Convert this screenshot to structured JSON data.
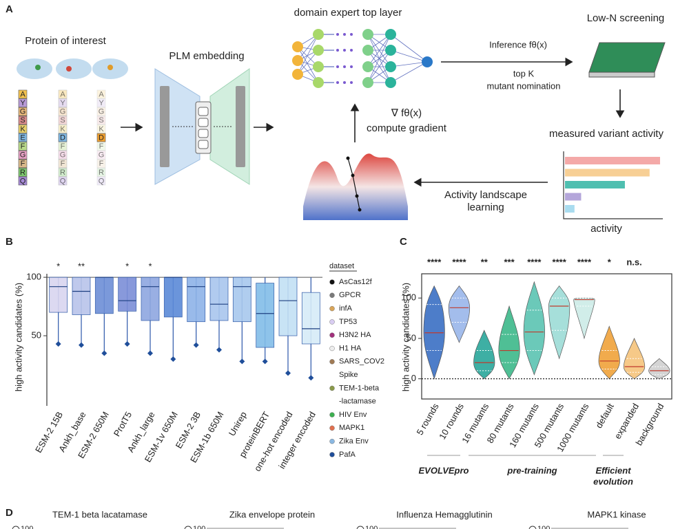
{
  "panel_a": {
    "label": "A",
    "protein_title": "Protein of interest",
    "sequences": [
      "AYGSKEFGFRQ",
      "AYGSKDFGFRQ",
      "AYGSKDFGFRQ"
    ],
    "plm_title": "PLM embedding",
    "network_title": "domain expert top layer",
    "inference": "Inference fθ(x)",
    "nomination": [
      "top K",
      "mutant nomination"
    ],
    "screening_title": "Low-N screening",
    "measured_title": "measured variant activity",
    "activity_label": "activity",
    "activity_bars": [
      100,
      89,
      63,
      17,
      10
    ],
    "activity_bar_colors": [
      "#f4a9a8",
      "#f7cf95",
      "#4fbfb0",
      "#b4a6da",
      "#a9dcef"
    ],
    "landscape": [
      "Activity landscape",
      "learning"
    ],
    "gradient": [
      "∇ fθ(x)",
      "compute gradient"
    ]
  },
  "chart_data": [
    {
      "type": "box",
      "label": "B",
      "ylabel": "high activity candidates (%)",
      "categories": [
        "ESM-2 15B",
        "Ankh_base",
        "ESM-2 650M",
        "ProtT5",
        "Ankh_large",
        "ESM-1v 650M",
        "ESM-2 3B",
        "ESM-1b 650M",
        "Unirep",
        "proteinBERT",
        "one-hot encoded",
        "integer encoded"
      ],
      "category_colors": [
        "#e0402a",
        "#222",
        "#222",
        "#222",
        "#222",
        "#222",
        "#222",
        "#222",
        "#222",
        "#222",
        "#222",
        "#222"
      ],
      "annotations": [
        "*",
        "**",
        null,
        "*",
        "*",
        null,
        null,
        null,
        null,
        null,
        null,
        null
      ],
      "annotation_colors": [
        "#e0402a",
        "#222",
        null,
        "#222",
        "#222",
        null,
        null,
        null,
        null,
        null,
        null,
        null
      ],
      "min": [
        43,
        42,
        35,
        43,
        35,
        30,
        42,
        38,
        28,
        28,
        18,
        14
      ],
      "q1": [
        70,
        68,
        69,
        71,
        63,
        66,
        62,
        63,
        62,
        40,
        50,
        43
      ],
      "median": [
        92,
        88,
        100,
        80,
        92,
        100,
        92,
        77,
        92,
        69,
        80,
        56
      ],
      "q3": [
        100,
        100,
        100,
        100,
        100,
        100,
        100,
        100,
        100,
        95,
        100,
        87
      ],
      "max": [
        100,
        100,
        100,
        100,
        100,
        100,
        100,
        100,
        100,
        100,
        100,
        100
      ],
      "box_colors": [
        "#d9d5f0",
        "#b9c4ea",
        "#6d8fd6",
        "#7c8ed8",
        "#8fa7e0",
        "#5c8ad8",
        "#8eb3e8",
        "#a9c6ee",
        "#a8c8ee",
        "#82bde8",
        "#c3e0f5",
        "#d6ecf8"
      ],
      "ylim": [
        -10,
        103
      ],
      "yticks": [
        50,
        100
      ],
      "legend": {
        "title": "dataset",
        "entries": [
          {
            "lines": [
              "AsCas12f"
            ],
            "color": "#111111"
          },
          {
            "lines": [
              "GPCR"
            ],
            "color": "#7a7a7a"
          },
          {
            "lines": [
              "infA"
            ],
            "color": "#d9a55a"
          },
          {
            "lines": [
              "TP53"
            ],
            "color": "#d9cdf2"
          },
          {
            "lines": [
              "H3N2 HA"
            ],
            "color": "#a2307c"
          },
          {
            "lines": [
              "H1 HA"
            ],
            "color": "#eeeeee"
          },
          {
            "lines": [
              "SARS_COV2",
              "Spike"
            ],
            "color": "#a07a55"
          },
          {
            "lines": [
              "TEM-1-beta",
              "-lactamase"
            ],
            "color": "#8a9a4a"
          },
          {
            "lines": [
              "HIV Env"
            ],
            "color": "#3cb050"
          },
          {
            "lines": [
              "MAPK1"
            ],
            "color": "#e0704e"
          },
          {
            "lines": [
              "Zika Env"
            ],
            "color": "#8ab8e2"
          },
          {
            "lines": [
              "PafA"
            ],
            "color": "#1f4e9a"
          }
        ]
      }
    },
    {
      "type": "violin",
      "label": "C",
      "ylabel": "high activity candidates (%)",
      "categories": [
        "5 rounds",
        "10 rounds",
        "16 mutants",
        "80 mutants",
        "160 mutants",
        "500 mutants",
        "1000 mutants",
        "default",
        "expanded",
        "background"
      ],
      "annotations": [
        "****",
        "****",
        "**",
        "***",
        "****",
        "****",
        "****",
        "*",
        "n.s.",
        null
      ],
      "colors": [
        "#3a6fc4",
        "#9ab6ea",
        "#2aa79b",
        "#3cb98a",
        "#5cc4b2",
        "#9ddcd6",
        "#cdece7",
        "#f0a33a",
        "#f6c47c",
        "#d0d0d0"
      ],
      "min": [
        0,
        45,
        0,
        0,
        5,
        25,
        50,
        0,
        0,
        0
      ],
      "q1": [
        35,
        70,
        10,
        20,
        35,
        60,
        90,
        12,
        8,
        5
      ],
      "median": [
        57,
        88,
        20,
        35,
        58,
        90,
        98,
        22,
        15,
        10
      ],
      "q3": [
        92,
        100,
        35,
        55,
        85,
        100,
        100,
        35,
        25,
        15
      ],
      "max": [
        115,
        115,
        60,
        90,
        120,
        115,
        100,
        65,
        50,
        25
      ],
      "ylim": [
        -25,
        130
      ],
      "yticks": [
        0,
        50,
        100
      ],
      "groups": [
        {
          "lines": [
            "EVOLVEpro"
          ]
        },
        {
          "lines": [
            "pre-training"
          ]
        },
        {
          "lines": [
            "Efficient",
            "evolution"
          ]
        }
      ]
    }
  ],
  "panel_d": {
    "label": "D",
    "panels": [
      {
        "title": "TEM-1 beta lacatamase",
        "ytick": "100"
      },
      {
        "title": "Zika envelope protein",
        "ytick": "100"
      },
      {
        "title": "Influenza Hemagglutinin",
        "ytick": "100"
      },
      {
        "title": "MAPK1 kinase",
        "ytick": "100"
      }
    ]
  }
}
